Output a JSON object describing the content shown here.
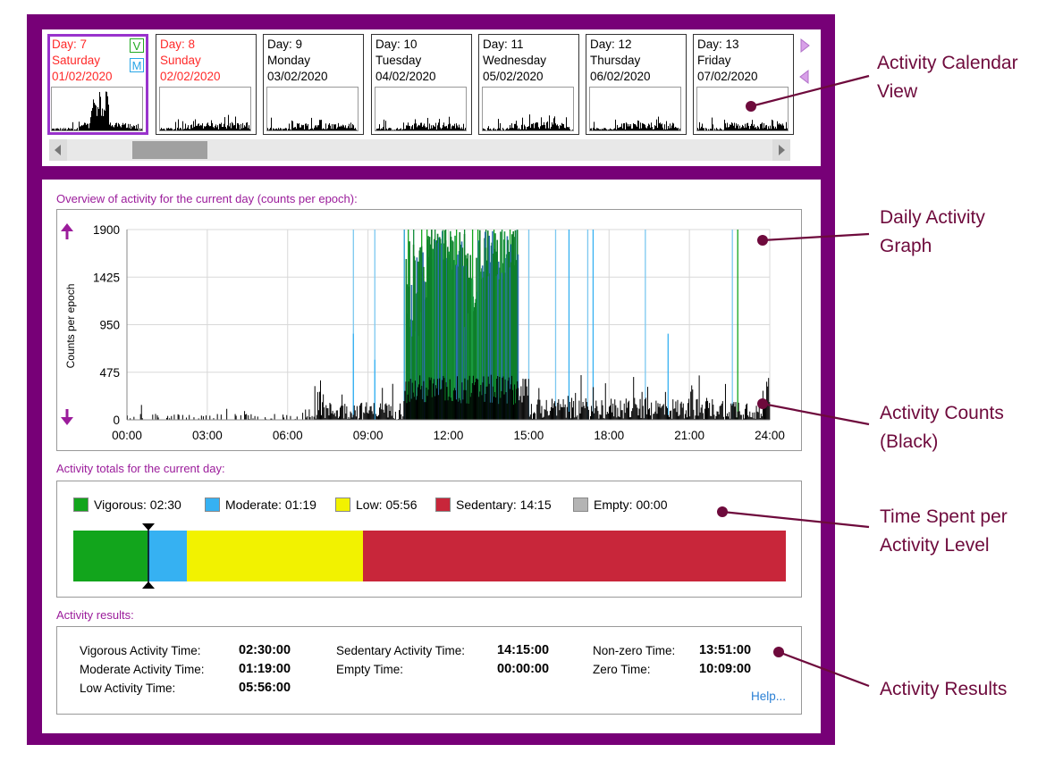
{
  "calendar": {
    "days": [
      {
        "day": "Day: 7",
        "weekday": "Saturday",
        "date": "01/02/2020",
        "weekend": true,
        "selected": true
      },
      {
        "day": "Day: 8",
        "weekday": "Sunday",
        "date": "02/02/2020",
        "weekend": true,
        "selected": false
      },
      {
        "day": "Day: 9",
        "weekday": "Monday",
        "date": "03/02/2020",
        "weekend": false,
        "selected": false
      },
      {
        "day": "Day: 10",
        "weekday": "Tuesday",
        "date": "04/02/2020",
        "weekend": false,
        "selected": false
      },
      {
        "day": "Day: 11",
        "weekday": "Wednesday",
        "date": "05/02/2020",
        "weekend": false,
        "selected": false
      },
      {
        "day": "Day: 12",
        "weekday": "Thursday",
        "date": "06/02/2020",
        "weekend": false,
        "selected": false
      },
      {
        "day": "Day: 13",
        "weekday": "Friday",
        "date": "07/02/2020",
        "weekend": false,
        "selected": false
      }
    ],
    "badge_v": "V",
    "badge_m": "M",
    "next_icon": "triangle-right-icon",
    "prev_icon": "triangle-left-icon"
  },
  "overview": {
    "label": "Overview of activity for the current day (counts per epoch):",
    "ylabel": "Counts per epoch",
    "up_icon": "arrow-up-icon",
    "down_icon": "arrow-down-icon"
  },
  "totals": {
    "label": "Activity totals for the current day:",
    "legend": [
      {
        "label": "Vigorous: 02:30",
        "color": "#12a51c"
      },
      {
        "label": "Moderate: 01:19",
        "color": "#36b1f2"
      },
      {
        "label": "Low: 05:56",
        "color": "#f2f200"
      },
      {
        "label": "Sedentary: 14:15",
        "color": "#c8263a"
      },
      {
        "label": "Empty: 00:00",
        "color": "#b4b4b4"
      }
    ],
    "minutes": [
      150,
      79,
      356,
      855,
      0
    ]
  },
  "results": {
    "label": "Activity results:",
    "rows": [
      {
        "label": "Vigorous Activity Time:",
        "value": "02:30:00"
      },
      {
        "label": "Moderate Activity Time:",
        "value": "01:19:00"
      },
      {
        "label": "Low Activity Time:",
        "value": "05:56:00"
      },
      {
        "label": "Sedentary Activity Time:",
        "value": "14:15:00"
      },
      {
        "label": "Empty Time:",
        "value": "00:00:00"
      },
      {
        "label": "Non-zero Time:",
        "value": "13:51:00"
      },
      {
        "label": "Zero Time:",
        "value": "10:09:00"
      }
    ],
    "help": "Help..."
  },
  "annotations": [
    "Activity Calendar\nView",
    "Daily Activity\nGraph",
    "Activity Counts\n(Black)",
    "Time Spent per\nActivity Level",
    "Activity Results"
  ],
  "chart_data": {
    "type": "bar",
    "title": "Overview of activity for the current day (counts per epoch):",
    "xlabel": "",
    "ylabel": "Counts per epoch",
    "x_ticks": [
      "00:00",
      "03:00",
      "06:00",
      "09:00",
      "12:00",
      "15:00",
      "18:00",
      "21:00",
      "24:00"
    ],
    "y_ticks": [
      "0",
      "475",
      "950",
      "1425",
      "1900"
    ],
    "xlim": [
      0,
      24
    ],
    "ylim": [
      0,
      1900
    ],
    "grid": true,
    "series": [
      {
        "values_from": "generated",
        "color": "#000000"
      }
    ]
  }
}
